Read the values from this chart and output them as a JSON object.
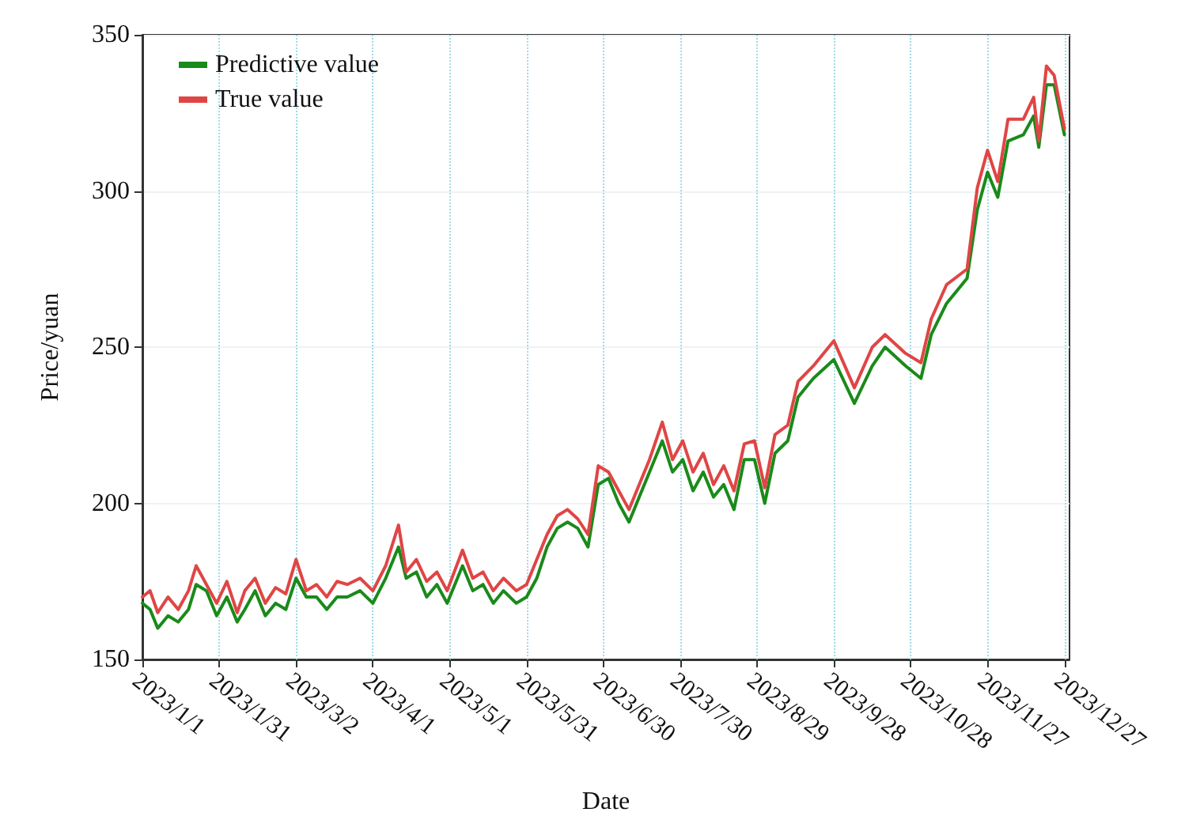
{
  "chart_data": {
    "type": "line",
    "xlabel": "Date",
    "ylabel": "Price/yuan",
    "xlim": [
      "2023-01-01",
      "2023-12-29"
    ],
    "ylim": [
      150,
      350
    ],
    "yticks": [
      150,
      200,
      250,
      300,
      350
    ],
    "xticks": [
      {
        "value": "2023-01-01",
        "label": "2023/1/1"
      },
      {
        "value": "2023-01-31",
        "label": "2023/1/31"
      },
      {
        "value": "2023-03-02",
        "label": "2023/3/2"
      },
      {
        "value": "2023-04-01",
        "label": "2023/4/1"
      },
      {
        "value": "2023-05-01",
        "label": "2023/5/1"
      },
      {
        "value": "2023-05-31",
        "label": "2023/5/31"
      },
      {
        "value": "2023-06-30",
        "label": "2023/6/30"
      },
      {
        "value": "2023-07-30",
        "label": "2023/7/30"
      },
      {
        "value": "2023-08-29",
        "label": "2023/8/29"
      },
      {
        "value": "2023-09-28",
        "label": "2023/9/28"
      },
      {
        "value": "2023-10-28",
        "label": "2023/10/28"
      },
      {
        "value": "2023-11-27",
        "label": "2023/11/27"
      },
      {
        "value": "2023-12-27",
        "label": "2023/12/27"
      }
    ],
    "grid": true,
    "legend": "top left",
    "marker": "none",
    "line_style": "solid",
    "x": [
      "2023-01-01",
      "2023-01-04",
      "2023-01-07",
      "2023-01-11",
      "2023-01-15",
      "2023-01-19",
      "2023-01-22",
      "2023-01-26",
      "2023-01-30",
      "2023-02-03",
      "2023-02-07",
      "2023-02-10",
      "2023-02-14",
      "2023-02-18",
      "2023-02-22",
      "2023-02-26",
      "2023-03-02",
      "2023-03-06",
      "2023-03-10",
      "2023-03-14",
      "2023-03-18",
      "2023-03-22",
      "2023-03-27",
      "2023-04-01",
      "2023-04-06",
      "2023-04-11",
      "2023-04-14",
      "2023-04-18",
      "2023-04-22",
      "2023-04-26",
      "2023-04-30",
      "2023-05-06",
      "2023-05-10",
      "2023-05-14",
      "2023-05-18",
      "2023-05-22",
      "2023-05-27",
      "2023-05-31",
      "2023-06-04",
      "2023-06-08",
      "2023-06-12",
      "2023-06-16",
      "2023-06-20",
      "2023-06-24",
      "2023-06-28",
      "2023-07-02",
      "2023-07-06",
      "2023-07-10",
      "2023-07-14",
      "2023-07-18",
      "2023-07-23",
      "2023-07-27",
      "2023-07-31",
      "2023-08-04",
      "2023-08-08",
      "2023-08-12",
      "2023-08-16",
      "2023-08-20",
      "2023-08-24",
      "2023-08-28",
      "2023-09-01",
      "2023-09-05",
      "2023-09-10",
      "2023-09-14",
      "2023-09-20",
      "2023-09-28",
      "2023-10-06",
      "2023-10-13",
      "2023-10-18",
      "2023-10-26",
      "2023-11-01",
      "2023-11-05",
      "2023-11-11",
      "2023-11-19",
      "2023-11-23",
      "2023-11-27",
      "2023-12-01",
      "2023-12-05",
      "2023-12-11",
      "2023-12-15",
      "2023-12-17",
      "2023-12-20",
      "2023-12-23",
      "2023-12-27"
    ],
    "series": [
      {
        "name": "Predictive value",
        "color": "#1a8a1a",
        "values": [
          168,
          166,
          160,
          164,
          162,
          166,
          174,
          172,
          164,
          170,
          162,
          166,
          172,
          164,
          168,
          166,
          176,
          170,
          170,
          166,
          170,
          170,
          172,
          168,
          176,
          186,
          176,
          178,
          170,
          174,
          168,
          180,
          172,
          174,
          168,
          172,
          168,
          170,
          176,
          186,
          192,
          194,
          192,
          186,
          206,
          208,
          200,
          194,
          202,
          210,
          220,
          210,
          214,
          204,
          210,
          202,
          206,
          198,
          214,
          214,
          200,
          216,
          220,
          234,
          240,
          246,
          232,
          244,
          250,
          244,
          240,
          254,
          264,
          272,
          294,
          306,
          298,
          316,
          318,
          324,
          314,
          334,
          334,
          318
        ]
      },
      {
        "name": "True value",
        "color": "#e04545",
        "values": [
          170,
          172,
          165,
          170,
          166,
          172,
          180,
          174,
          168,
          175,
          165,
          172,
          176,
          168,
          173,
          171,
          182,
          172,
          174,
          170,
          175,
          174,
          176,
          172,
          180,
          193,
          178,
          182,
          175,
          178,
          172,
          185,
          176,
          178,
          172,
          176,
          172,
          174,
          182,
          190,
          196,
          198,
          195,
          190,
          212,
          210,
          204,
          198,
          206,
          214,
          226,
          214,
          220,
          210,
          216,
          206,
          212,
          204,
          219,
          220,
          205,
          222,
          225,
          239,
          244,
          252,
          237,
          250,
          254,
          248,
          245,
          259,
          270,
          275,
          301,
          313,
          303,
          323,
          323,
          330,
          316,
          340,
          337,
          320
        ]
      }
    ]
  }
}
